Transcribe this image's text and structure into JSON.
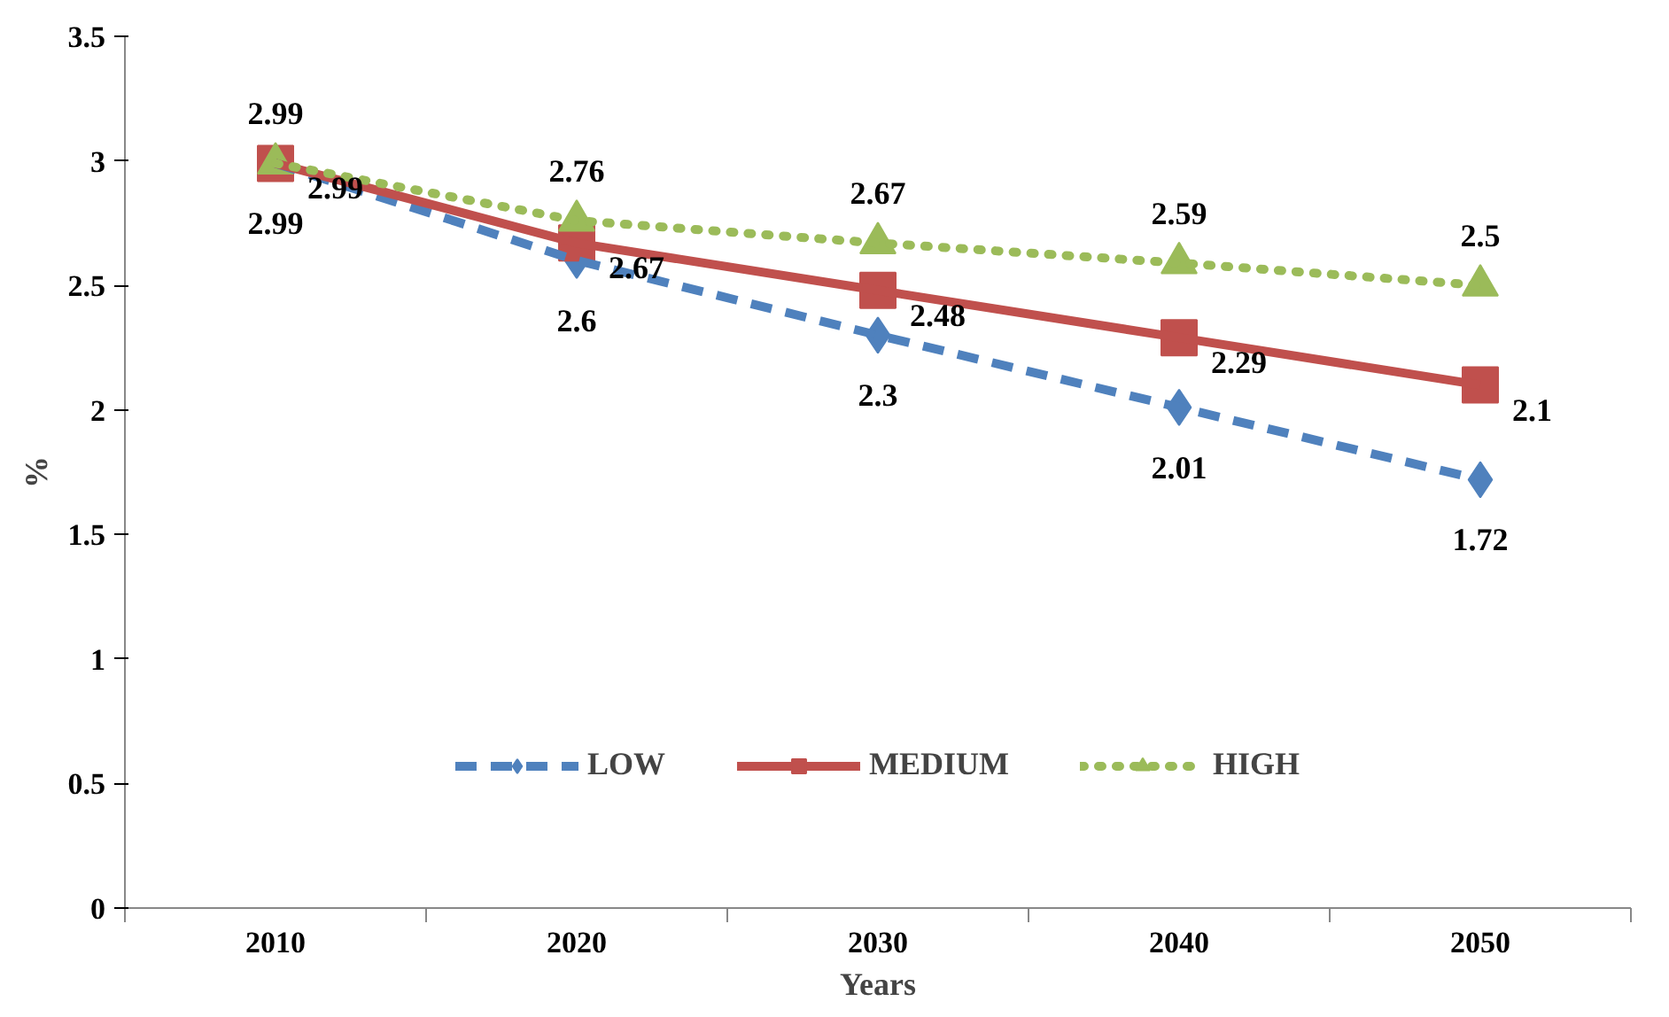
{
  "chart_data": {
    "type": "line",
    "xlabel": "Years",
    "ylabel": "%",
    "categories": [
      "2010",
      "2020",
      "2030",
      "2040",
      "2050"
    ],
    "series": [
      {
        "name": "LOW",
        "color": "#4f81bd",
        "values": [
          2.99,
          2.6,
          2.3,
          2.01,
          1.72
        ],
        "marker": "diamond",
        "line_style": "dashed"
      },
      {
        "name": "MEDIUM",
        "color": "#c0504d",
        "values": [
          2.99,
          2.67,
          2.48,
          2.29,
          2.1
        ],
        "marker": "square",
        "line_style": "solid"
      },
      {
        "name": "HIGH",
        "color": "#9bbb59",
        "values": [
          2.99,
          2.76,
          2.67,
          2.59,
          2.5
        ],
        "marker": "triangle",
        "line_style": "dotted"
      }
    ],
    "ylim": [
      0,
      3.5
    ],
    "yticks": [
      0,
      0.5,
      1,
      1.5,
      2,
      2.5,
      3,
      3.5
    ],
    "grid": false,
    "legend": "bottom",
    "data_labels": true
  }
}
